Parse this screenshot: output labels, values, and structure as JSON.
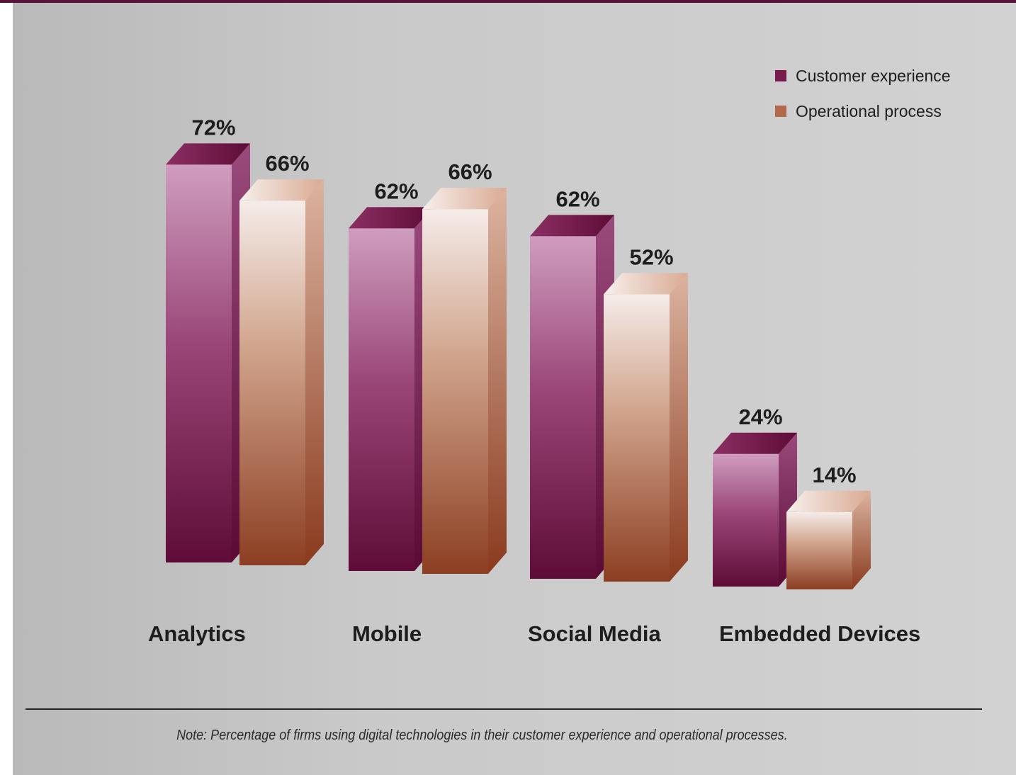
{
  "chart_data": {
    "type": "bar",
    "categories": [
      "Analytics",
      "Mobile",
      "Social Media",
      "Embedded Devices"
    ],
    "series": [
      {
        "name": "Customer experience",
        "values": [
          72,
          62,
          62,
          24
        ],
        "labels": [
          "72%",
          "62%",
          "62%",
          "24%"
        ]
      },
      {
        "name": "Operational process",
        "values": [
          66,
          66,
          52,
          14
        ],
        "labels": [
          "66%",
          "66%",
          "52%",
          "14%"
        ]
      }
    ],
    "unit": "%",
    "ylim": [
      0,
      80
    ],
    "grid": false,
    "legend_position": "top-right",
    "style": "3d"
  },
  "colors": {
    "customer_experience": "#7a1a4c",
    "operational_process": "#b0694a",
    "top_rule": "#5b1239"
  },
  "note": "Note: Percentage of firms using digital technologies in their customer experience and operational processes."
}
